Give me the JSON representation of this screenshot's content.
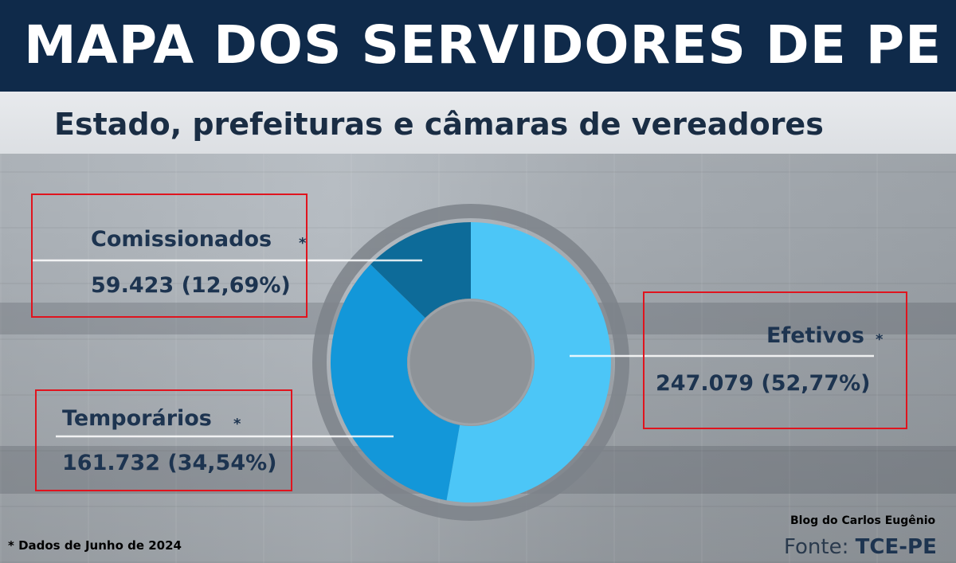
{
  "header": {
    "title": "MAPA DOS SERVIDORES DE PE",
    "subtitle": "Estado, prefeituras e câmaras de vereadores"
  },
  "chart_data": {
    "type": "pie",
    "variant": "donut",
    "categories": [
      "Efetivos",
      "Temporários",
      "Comissionados"
    ],
    "values": [
      247079,
      161732,
      59423
    ],
    "value_labels": [
      "247.079",
      "161.732",
      "59.423"
    ],
    "percent_labels": [
      "52,77%",
      "34,54%",
      "12,69%"
    ],
    "colors": [
      "#4cc6f7",
      "#1397d9",
      "#0d6b99"
    ],
    "ring_color": "#7d8389",
    "legend": "none",
    "asterisk": "*"
  },
  "labels": {
    "comissionados_value": "59.423 (12,69%)",
    "temporarios_value": "161.732 (34,54%)",
    "efetivos_value": "247.079 (52,77%)"
  },
  "footer": {
    "note": "* Dados de Junho de 2024",
    "blog": "Blog do Carlos Eugênio",
    "fonte_prefix": "Fonte: ",
    "fonte_source": "TCE-PE"
  }
}
